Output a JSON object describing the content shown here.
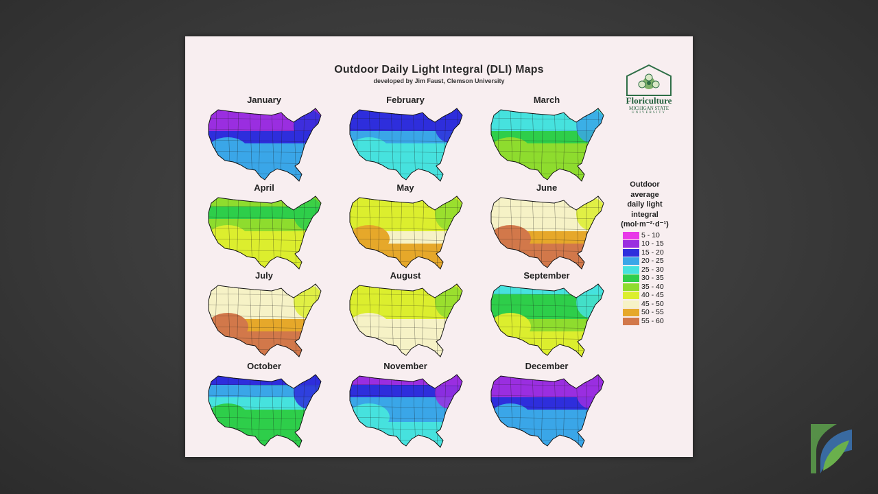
{
  "poster": {
    "title": "Outdoor Daily Light Integral (DLI) Maps",
    "subtitle": "developed by Jim Faust, Clemson University"
  },
  "logo": {
    "name": "Floriculture",
    "institution": "MICHIGAN STATE",
    "institution2": "UNIVERSITY"
  },
  "legend": {
    "title_lines": [
      "Outdoor",
      "average",
      "daily light",
      "integral",
      "(mol·m⁻²·d⁻¹)"
    ],
    "items": [
      {
        "label": "5 - 10",
        "color": "#e838e8"
      },
      {
        "label": "10 - 15",
        "color": "#9a2ee0"
      },
      {
        "label": "15 - 20",
        "color": "#2e2edc"
      },
      {
        "label": "20 - 25",
        "color": "#3aa6e8"
      },
      {
        "label": "25 - 30",
        "color": "#46e2de"
      },
      {
        "label": "30 - 35",
        "color": "#2ece4a"
      },
      {
        "label": "35 - 40",
        "color": "#8edc2e"
      },
      {
        "label": "40 - 45",
        "color": "#dcee2e"
      },
      {
        "label": "45 - 50",
        "color": "#f6f2c6"
      },
      {
        "label": "50 - 55",
        "color": "#e6a82a"
      },
      {
        "label": "55 - 60",
        "color": "#d2784a"
      }
    ]
  },
  "months": [
    {
      "name": "January",
      "bands": [
        1,
        1,
        2,
        3,
        3,
        2
      ]
    },
    {
      "name": "February",
      "bands": [
        2,
        2,
        3,
        4,
        4,
        2
      ]
    },
    {
      "name": "March",
      "bands": [
        4,
        4,
        5,
        6,
        6,
        3
      ]
    },
    {
      "name": "April",
      "bands": [
        6,
        5,
        6,
        7,
        7,
        5
      ]
    },
    {
      "name": "May",
      "bands": [
        7,
        7,
        7,
        8,
        9,
        6
      ]
    },
    {
      "name": "June",
      "bands": [
        8,
        8,
        8,
        9,
        10,
        7
      ]
    },
    {
      "name": "July",
      "bands": [
        8,
        8,
        8,
        9,
        10,
        7
      ]
    },
    {
      "name": "August",
      "bands": [
        7,
        7,
        7,
        8,
        8,
        6
      ]
    },
    {
      "name": "September",
      "bands": [
        4,
        5,
        5,
        6,
        7,
        4
      ]
    },
    {
      "name": "October",
      "bands": [
        2,
        3,
        4,
        5,
        5,
        2
      ]
    },
    {
      "name": "November",
      "bands": [
        1,
        2,
        3,
        3,
        4,
        1
      ]
    },
    {
      "name": "December",
      "bands": [
        1,
        1,
        2,
        3,
        3,
        1
      ]
    }
  ]
}
